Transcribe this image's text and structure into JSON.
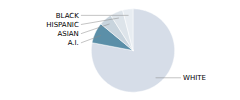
{
  "chart_data": {
    "type": "pie",
    "categories": [
      "WHITE",
      "A.I.",
      "ASIAN",
      "HISPANIC",
      "BLACK"
    ],
    "values": [
      78,
      8,
      5,
      5,
      4
    ],
    "colors": [
      "#d6dde8",
      "#5b8fa8",
      "#c8d4dd",
      "#dde4ea",
      "#e8edf2"
    ]
  }
}
